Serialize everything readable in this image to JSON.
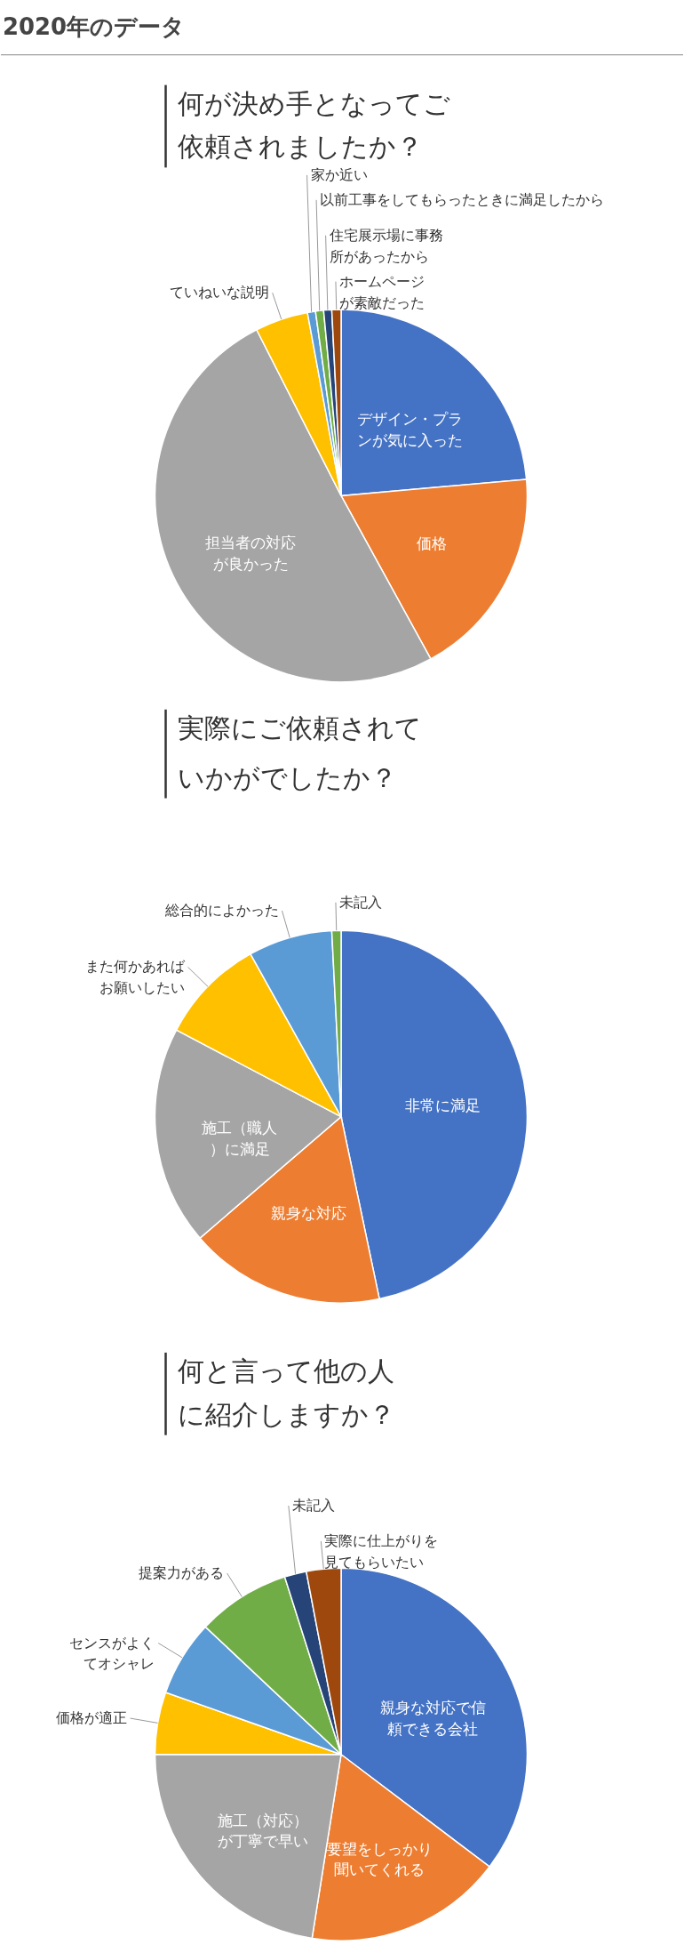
{
  "chart_data": [
    {
      "type": "pie",
      "title": "何が決め手となってご依頼されましたか？",
      "annotations": [
        "2020年のデータ"
      ],
      "categories": [
        "デザイン・プランが気に入った",
        "価格",
        "担当者の対応が良かった",
        "ていねいな説明",
        "家か近い",
        "以前工事をしてもらったときに満足したから",
        "住宅展示場に事務所があったから",
        "ホームページが素敵だった"
      ],
      "values": [
        23.6,
        18.4,
        50.5,
        4.6,
        0.7,
        0.7,
        0.7,
        0.8
      ],
      "colors": [
        "#4472c4",
        "#ed7d31",
        "#a5a5a5",
        "#ffc000",
        "#5b9bd5",
        "#70ad47",
        "#264478",
        "#9e480e"
      ]
    },
    {
      "type": "pie",
      "title": "実際にご依頼されていかがでしたか？",
      "categories": [
        "非常に満足",
        "親身な対応",
        "施工（職人）に満足",
        "また何かあればお願いしたい",
        "総合的によかった",
        "未記入"
      ],
      "values": [
        46.7,
        17,
        19,
        9.2,
        7.3,
        0.8
      ],
      "colors": [
        "#4472c4",
        "#ed7d31",
        "#a5a5a5",
        "#ffc000",
        "#5b9bd5",
        "#70ad47"
      ]
    },
    {
      "type": "pie",
      "title": "何と言って他の人に紹介しますか？",
      "categories": [
        "親身な対応で信頼できる会社",
        "要望をしっかり聞いてくれる",
        "施工（対応）が丁寧で早い",
        "価格が適正",
        "センスがよくてオシャレ",
        "提案力がある",
        "未記入",
        "実際に仕上がりを見てもらいたい"
      ],
      "values": [
        35.3,
        17.2,
        22.5,
        5.4,
        6.6,
        8.1,
        1.9,
        3.0
      ],
      "colors": [
        "#4472c4",
        "#ed7d31",
        "#a5a5a5",
        "#ffc000",
        "#5b9bd5",
        "#70ad47",
        "#264478",
        "#9e480e"
      ]
    }
  ]
}
